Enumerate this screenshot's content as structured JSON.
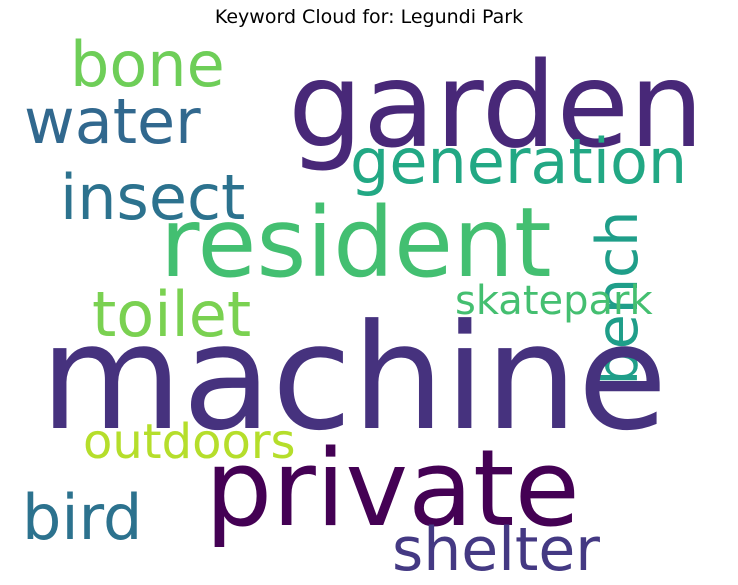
{
  "title": "Keyword Cloud for: Legundi Park",
  "words": [
    {
      "text": "garden",
      "color": "#482878"
    },
    {
      "text": "bone",
      "color": "#6ece58"
    },
    {
      "text": "water",
      "color": "#31688e"
    },
    {
      "text": "generation",
      "color": "#22a884"
    },
    {
      "text": "insect",
      "color": "#2c728e"
    },
    {
      "text": "resident",
      "color": "#43bf71"
    },
    {
      "text": "bench",
      "color": "#1f9e89"
    },
    {
      "text": "toilet",
      "color": "#7ad151"
    },
    {
      "text": "skatepark",
      "color": "#44bf70"
    },
    {
      "text": "machine",
      "color": "#46327e"
    },
    {
      "text": "outdoors",
      "color": "#b5de2b"
    },
    {
      "text": "private",
      "color": "#440154"
    },
    {
      "text": "bird",
      "color": "#2c728e"
    },
    {
      "text": "shelter",
      "color": "#443983"
    }
  ]
}
